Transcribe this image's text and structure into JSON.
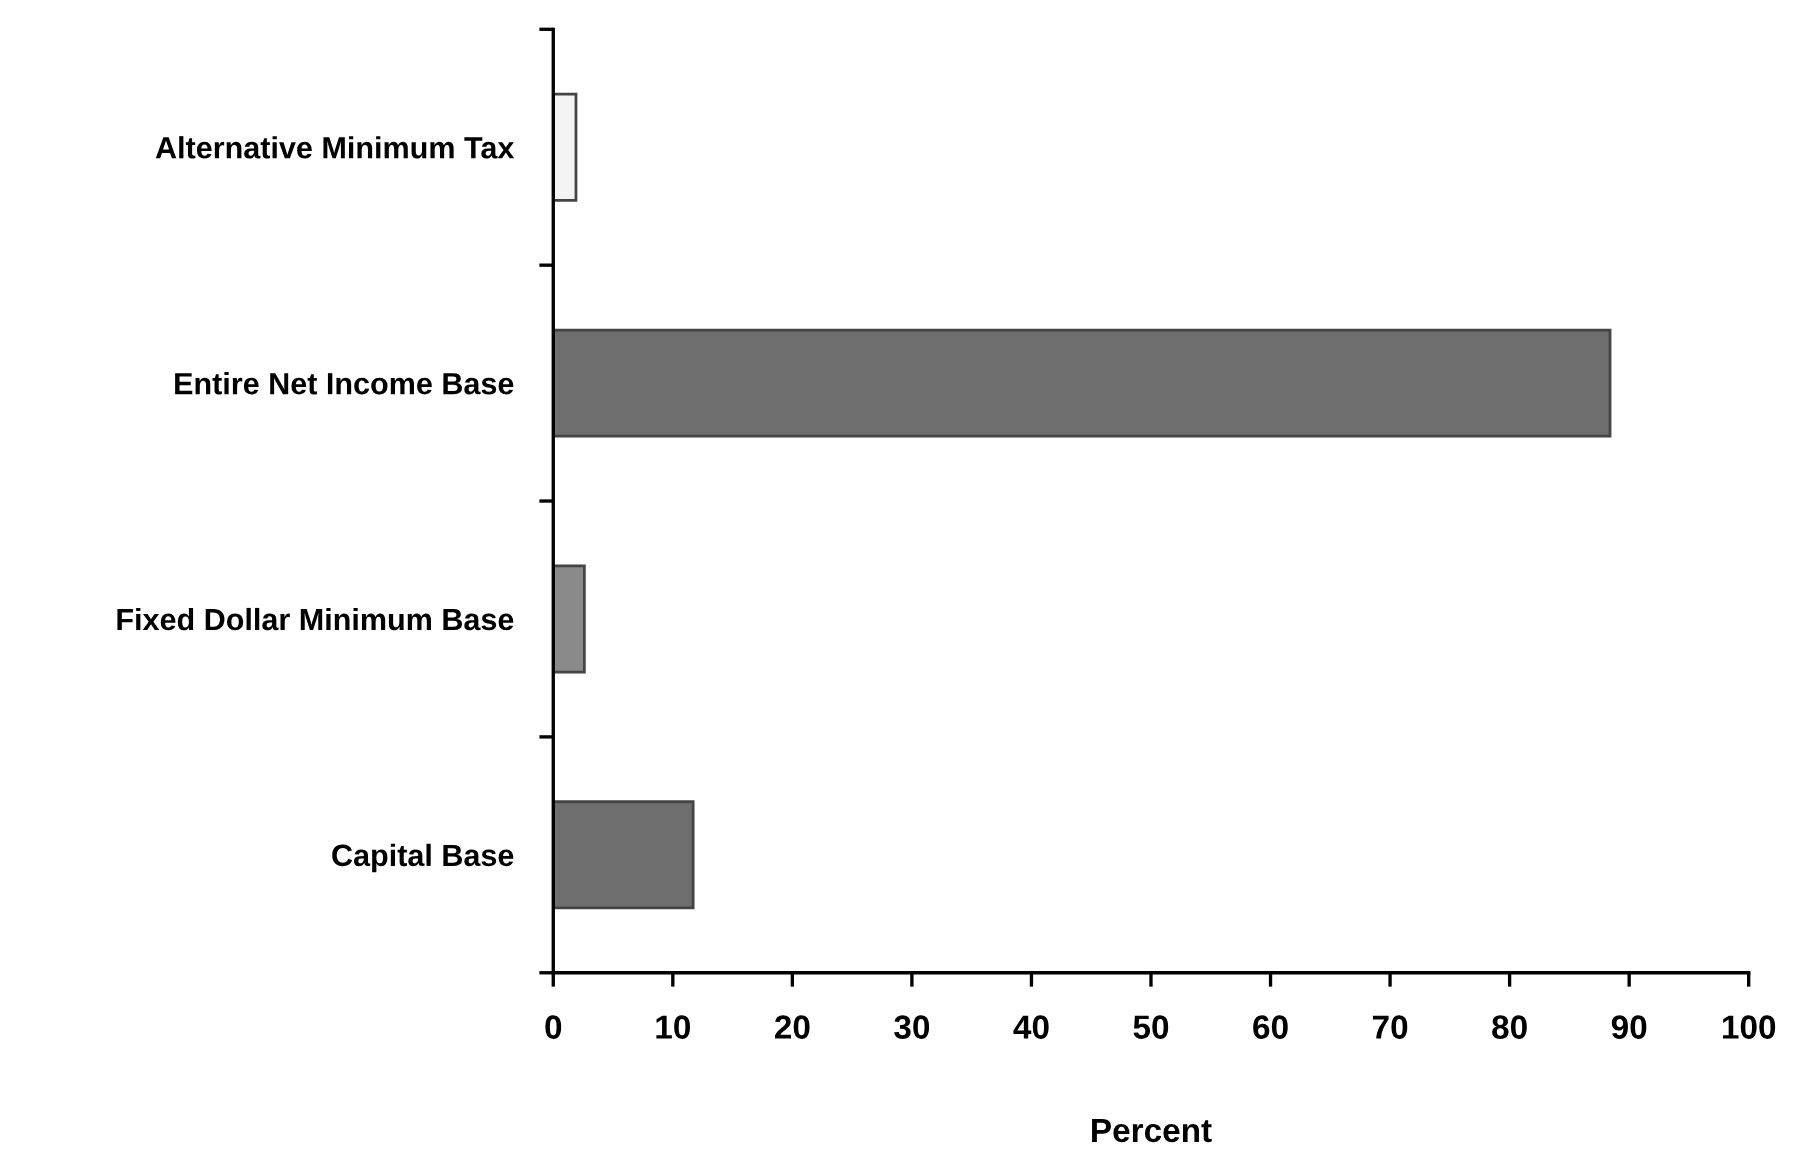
{
  "chart_data": {
    "type": "bar",
    "orientation": "horizontal",
    "xlabel": "Percent",
    "categories": [
      "Alternative Minimum Tax",
      "Entire Net Income Base",
      "Fixed Dollar Minimum Base",
      "Capital Base"
    ],
    "values": [
      1.9,
      88.4,
      2.6,
      11.7
    ],
    "colors": [
      "#f4f4f4",
      "#6e6e6e",
      "#8a8a8a",
      "#6e6e6e"
    ],
    "xlim": [
      0,
      100
    ],
    "xticks": [
      0,
      10,
      20,
      30,
      40,
      50,
      60,
      70,
      80,
      90,
      100
    ],
    "grid": false,
    "legend": false
  }
}
